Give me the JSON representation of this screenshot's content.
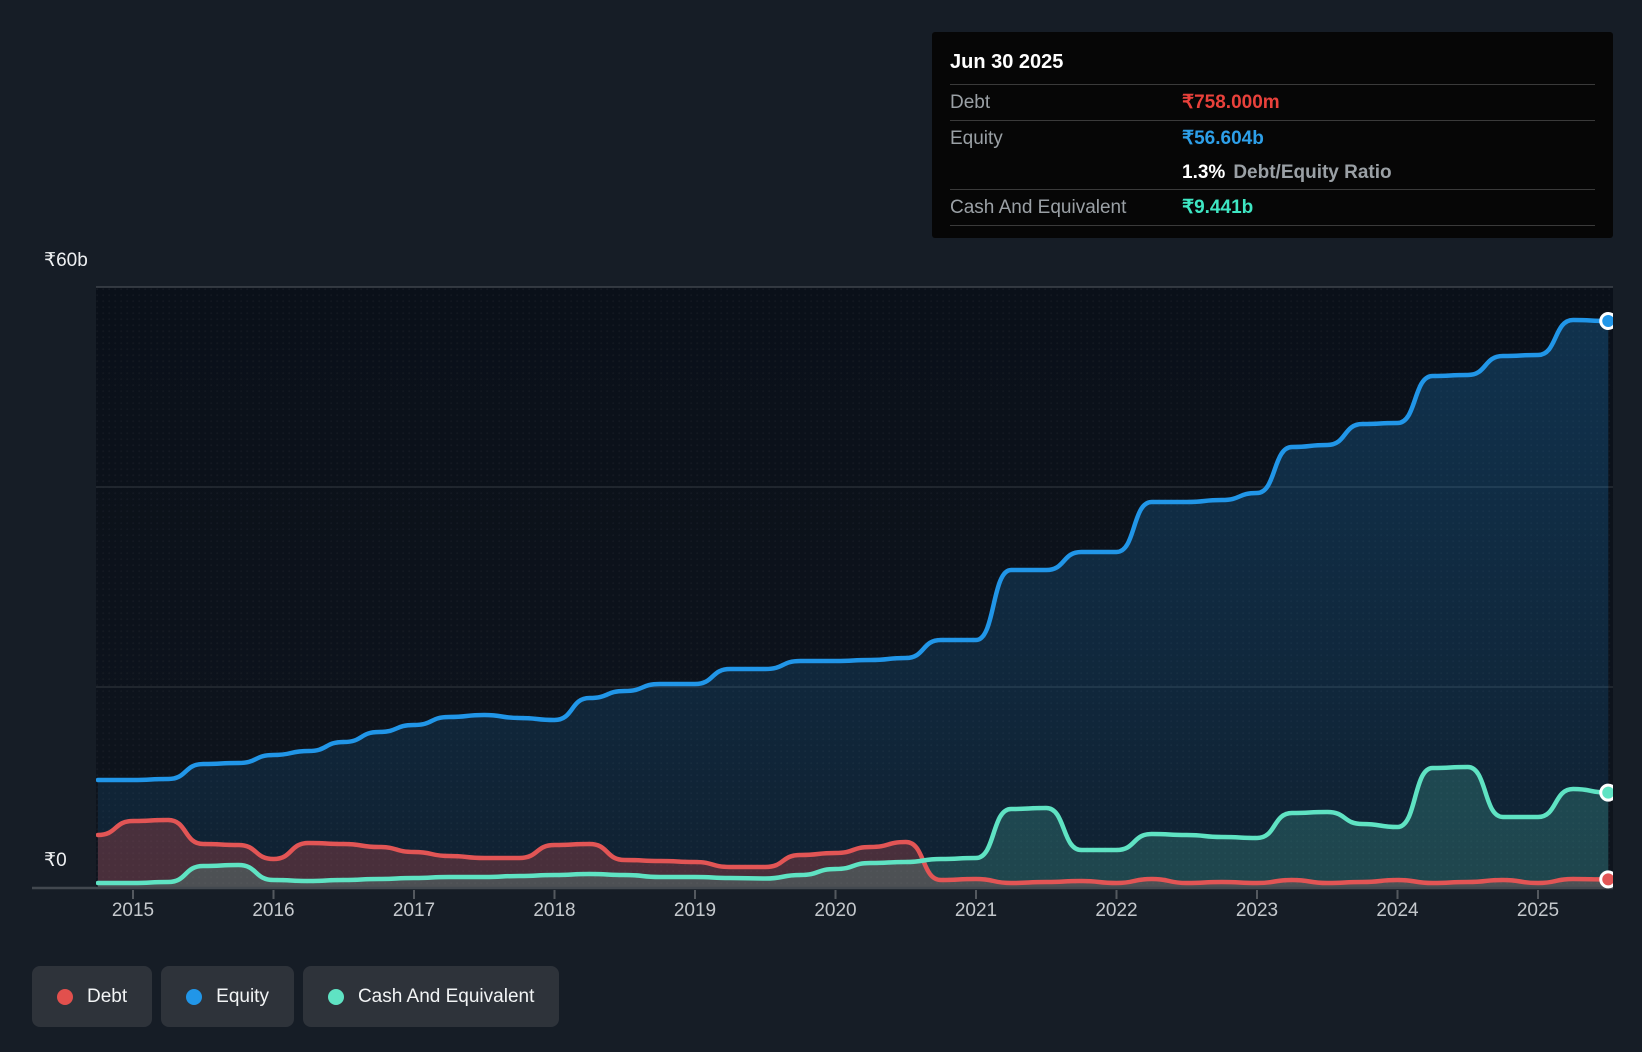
{
  "tooltip": {
    "date": "Jun 30 2025",
    "rows": [
      {
        "label": "Debt",
        "value": "₹758.000m",
        "color": "#e9413b"
      },
      {
        "label": "Equity",
        "value": "₹56.604b",
        "color": "#2d9fe8"
      },
      {
        "label": "Cash And Equivalent",
        "value": "₹9.441b",
        "color": "#3ee6c3"
      }
    ],
    "ratio": {
      "value": "1.3%",
      "label": "Debt/Equity Ratio"
    }
  },
  "legend": [
    {
      "label": "Debt",
      "color": "#e2504d"
    },
    {
      "label": "Equity",
      "color": "#2196e8"
    },
    {
      "label": "Cash And Equivalent",
      "color": "#5fe3c3"
    }
  ],
  "chart_data": {
    "type": "area",
    "title": "Debt, Equity and Cash history",
    "x_unit": "year (quarterly points)",
    "ylim": [
      0,
      60
    ],
    "xlim": [
      2014.75,
      2025.53
    ],
    "grid": "horizontal",
    "legend_position": "bottom-left",
    "y_gridlines": [
      {
        "value": 60,
        "strong": true
      },
      {
        "value": 40,
        "strong": false
      },
      {
        "value": 20,
        "strong": false
      }
    ],
    "y_axis_labels": [
      {
        "text": "₹60b",
        "value": 60
      },
      {
        "text": "₹0",
        "value": 0
      }
    ],
    "x_ticks": [
      "2015",
      "2016",
      "2017",
      "2018",
      "2019",
      "2020",
      "2021",
      "2022",
      "2023",
      "2024",
      "2025"
    ],
    "x": [
      2014.75,
      2015.0,
      2015.25,
      2015.5,
      2015.75,
      2016.0,
      2016.25,
      2016.5,
      2016.75,
      2017.0,
      2017.25,
      2017.5,
      2017.75,
      2018.0,
      2018.25,
      2018.5,
      2018.75,
      2019.0,
      2019.25,
      2019.5,
      2019.75,
      2020.0,
      2020.25,
      2020.5,
      2020.75,
      2021.0,
      2021.25,
      2021.5,
      2021.75,
      2022.0,
      2022.25,
      2022.5,
      2022.75,
      2023.0,
      2023.25,
      2023.5,
      2023.75,
      2024.0,
      2024.25,
      2024.5,
      2024.75,
      2025.0,
      2025.25,
      2025.5
    ],
    "series": [
      {
        "name": "Equity",
        "unit": "₹b",
        "z": 0,
        "color": "#2196e8",
        "fill": "equity-gradient",
        "values": [
          10.7,
          10.7,
          10.8,
          12.3,
          12.4,
          13.2,
          13.6,
          14.5,
          15.5,
          16.2,
          17.0,
          17.2,
          16.9,
          16.7,
          18.9,
          19.6,
          20.3,
          20.3,
          21.8,
          21.8,
          22.6,
          22.6,
          22.7,
          22.9,
          24.7,
          24.7,
          31.7,
          31.7,
          33.5,
          33.5,
          38.5,
          38.5,
          38.7,
          39.4,
          44.0,
          44.2,
          46.3,
          46.4,
          51.1,
          51.2,
          53.1,
          53.2,
          56.7,
          56.604
        ]
      },
      {
        "name": "Debt",
        "unit": "₹b",
        "z": 1,
        "color": "#e25555",
        "fill": "rgba(224,82,82,0.28)",
        "values": [
          5.2,
          6.6,
          6.7,
          4.3,
          4.2,
          2.8,
          4.4,
          4.3,
          4.0,
          3.5,
          3.1,
          2.9,
          2.9,
          4.2,
          4.3,
          2.7,
          2.6,
          2.5,
          2.0,
          2.0,
          3.2,
          3.4,
          4.0,
          4.5,
          0.7,
          0.8,
          0.4,
          0.5,
          0.6,
          0.4,
          0.8,
          0.4,
          0.5,
          0.4,
          0.7,
          0.4,
          0.5,
          0.7,
          0.4,
          0.5,
          0.7,
          0.4,
          0.8,
          0.758
        ]
      },
      {
        "name": "Cash And Equivalent",
        "unit": "₹b",
        "z": 2,
        "color": "#5fe3c3",
        "fill": "rgba(95,227,196,0.19)",
        "values": [
          0.4,
          0.4,
          0.5,
          2.1,
          2.2,
          0.7,
          0.6,
          0.7,
          0.8,
          0.9,
          1.0,
          1.0,
          1.1,
          1.2,
          1.3,
          1.2,
          1.0,
          1.0,
          0.9,
          0.85,
          1.2,
          1.8,
          2.4,
          2.5,
          2.8,
          2.9,
          7.8,
          7.9,
          3.7,
          3.7,
          5.3,
          5.2,
          5.0,
          4.9,
          7.4,
          7.5,
          6.3,
          6.0,
          11.9,
          12.0,
          7.0,
          7.0,
          9.8,
          9.441
        ]
      }
    ],
    "end_markers": {
      "stroke": "#ffffff",
      "radius": 7.5
    }
  },
  "colors": {
    "page_bg": "#161d26",
    "plot_bg": "#0c121a",
    "grid_strong": "#3e444c",
    "grid_weak": "#272d35",
    "axis_line": "#42484f",
    "tick": "#54595f",
    "year_label": "#c4c8cc",
    "y_label": "#eef0f2"
  }
}
